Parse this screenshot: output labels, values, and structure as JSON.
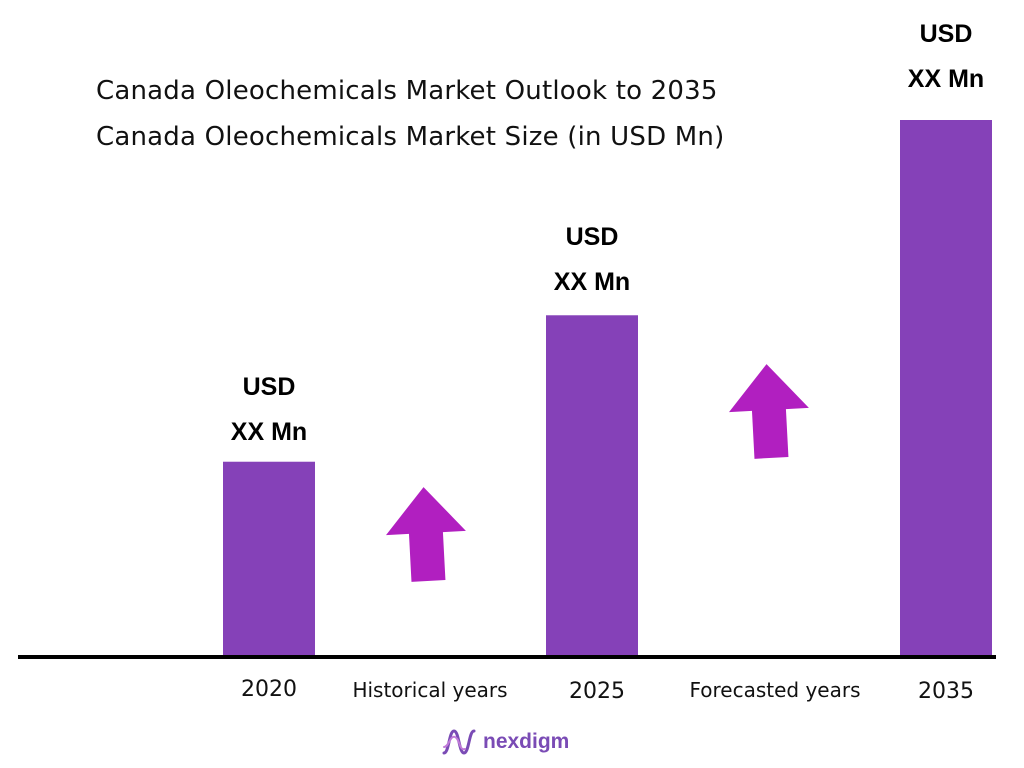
{
  "chart_data": {
    "type": "bar",
    "title": "Canada Oleochemicals Market Outlook to 2035",
    "subtitle": "Canada Oleochemicals Market Size (in USD Mn)",
    "categories": [
      "2020",
      "2025",
      "2035"
    ],
    "values": [
      2.0,
      3.5,
      5.5
    ],
    "value_labels": [
      {
        "line1": "USD",
        "line2": "XX Mn"
      },
      {
        "line1": "USD",
        "line2": "XX Mn"
      },
      {
        "line1": "USD",
        "line2": "XX Mn"
      }
    ],
    "ylim": [
      0,
      6
    ],
    "grid": false,
    "legend": "none",
    "period_labels": [
      "Historical years",
      "Forecasted years"
    ],
    "colors": {
      "bar": "#8541b8",
      "arrow": "#b11fc0",
      "axis": "#000000"
    }
  },
  "brand": {
    "name": "nexdigm",
    "icon": "nexdigm-wave-icon",
    "color": "#7a4bb5"
  }
}
